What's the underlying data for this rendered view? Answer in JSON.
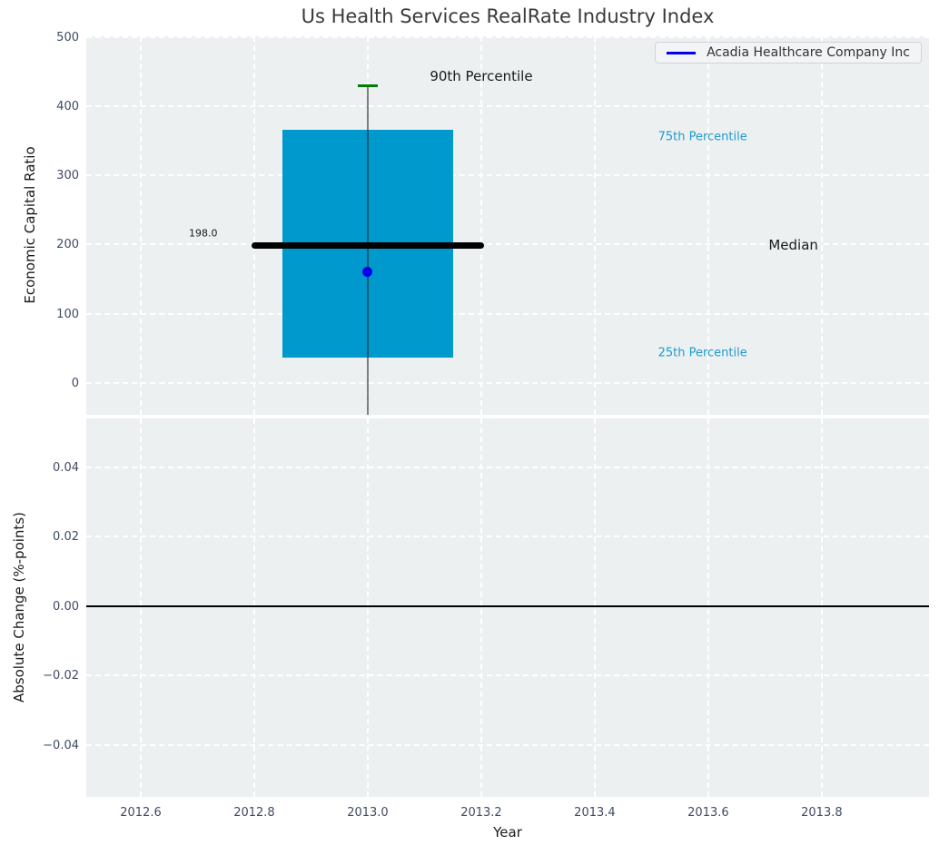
{
  "title": "Us Health Services RealRate Industry Index",
  "legend": {
    "label": "Acadia Healthcare Company Inc"
  },
  "colors": {
    "axes_background": "#ecf0f1",
    "grid": "#ffffff",
    "box_fill": "#0099cd",
    "median_line": "#000000",
    "whisker": "rgba(45,45,45,0.6)",
    "whisker_cap": "#007d00",
    "company_dot": "#0000ee",
    "legend_line": "#0000ee",
    "percentile_text": "#1d9bce",
    "tick_text": "#3e4c63",
    "dark_text": "#1a1a1a",
    "zero_line": "#000000"
  },
  "chart_data": [
    {
      "type": "boxplot",
      "title": "Us Health Services RealRate Industry Index",
      "ylabel": "Economic Capital Ratio",
      "xlabel": "",
      "ylim": [
        -46,
        501
      ],
      "xlim": [
        2012.504,
        2013.989
      ],
      "yticks": [
        0,
        100,
        200,
        300,
        400,
        500
      ],
      "ytick_labels": [
        "0",
        "100",
        "200",
        "300",
        "400",
        "500"
      ],
      "xticks": [
        2012.6,
        2012.8,
        2013.0,
        2013.2,
        2013.4,
        2013.6,
        2013.8
      ],
      "grid": true,
      "legend_position": "upper right",
      "series": [
        {
          "name": "Acadia Healthcare Company Inc",
          "points": [
            {
              "x": 2013.0,
              "y": 160
            }
          ]
        }
      ],
      "box": {
        "x_center": 2013.0,
        "p90": 430,
        "p75": 366,
        "median": 198,
        "p25": 36,
        "whisker_low": -46,
        "median_value_label": "198.0",
        "box_x_range": [
          2012.85,
          2013.15
        ],
        "median_x_range": [
          2012.795,
          2013.205
        ]
      },
      "annotations": [
        {
          "text": "90th Percentile",
          "x": 2013.2,
          "y": 443,
          "style": "dark",
          "size": 15
        },
        {
          "text": "75th Percentile",
          "x": 2013.59,
          "y": 355,
          "style": "accent",
          "size": 13
        },
        {
          "text": "Median",
          "x": 2013.75,
          "y": 199,
          "style": "dark",
          "size": 15
        },
        {
          "text": "25th Percentile",
          "x": 2013.59,
          "y": 43,
          "style": "accent",
          "size": 13
        },
        {
          "text": "198.0",
          "x": 2012.71,
          "y": 217,
          "style": "dark",
          "size": 11
        }
      ]
    },
    {
      "type": "line",
      "ylabel": "Absolute Change (%-points)",
      "xlabel": "Year",
      "ylim": [
        -0.055,
        0.054
      ],
      "xlim": [
        2012.504,
        2013.989
      ],
      "yticks": [
        0.04,
        0.02,
        0.0,
        -0.02,
        -0.04
      ],
      "ytick_labels": [
        "0.04",
        "0.02",
        "0.00",
        "−0.02",
        "−0.04"
      ],
      "xticks": [
        2012.6,
        2012.8,
        2013.0,
        2013.2,
        2013.4,
        2013.6,
        2013.8
      ],
      "xtick_labels": [
        "2012.6",
        "2012.8",
        "2013.0",
        "2013.2",
        "2013.4",
        "2013.6",
        "2013.8"
      ],
      "grid": true,
      "zero_line_y": 0.0,
      "series": []
    }
  ]
}
